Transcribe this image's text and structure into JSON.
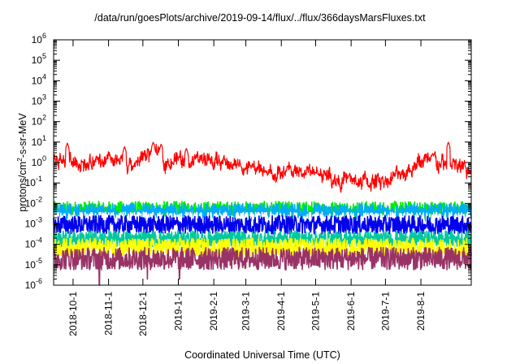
{
  "chart_data": {
    "type": "line",
    "title": "/data/run/goesPlots/archive/2019-09-14/flux/../flux/366daysMarsFluxes.txt",
    "xlabel": "Coordinated Universal Time (UTC)",
    "ylabel": {
      "main": "protons/cm",
      "sup": "2",
      "rest": "-s-sr-MeV"
    },
    "yscale": "log",
    "ylim_exp": [
      -6,
      6
    ],
    "ytick_base": "10",
    "ytick_exponents": [
      "-6",
      "-5",
      "-4",
      "-3",
      "-2",
      "-1",
      "0",
      "1",
      "2",
      "3",
      "4",
      "5",
      "6"
    ],
    "xlim": [
      "2018-09-14",
      "2019-09-14"
    ],
    "xticks": [
      {
        "date": "2018-10-01",
        "label": "2018-10-1"
      },
      {
        "date": "2018-11-01",
        "label": "2018-11-1"
      },
      {
        "date": "2018-12-01",
        "label": "2018-12-1"
      },
      {
        "date": "2019-01-01",
        "label": "2019-1-1"
      },
      {
        "date": "2019-02-01",
        "label": "2019-2-1"
      },
      {
        "date": "2019-03-01",
        "label": "2019-3-1"
      },
      {
        "date": "2019-04-01",
        "label": "2019-4-1"
      },
      {
        "date": "2019-05-01",
        "label": "2019-5-1"
      },
      {
        "date": "2019-06-01",
        "label": "2019-6-1"
      },
      {
        "date": "2019-07-01",
        "label": "2019-7-1"
      },
      {
        "date": "2019-08-01",
        "label": "2019-8-1"
      }
    ],
    "grid": false,
    "series": [
      {
        "color": "#00ee00",
        "base": 0.0045,
        "spread": 0.9
      },
      {
        "color": "#00aaff",
        "base": 0.0035,
        "spread": 0.9
      },
      {
        "color": "#ffffff",
        "base": 0.0015,
        "spread": 0.8
      },
      {
        "color": "#0000ee",
        "base": 0.0009,
        "spread": 0.9
      },
      {
        "color": "#00c8a0",
        "base": 0.00018,
        "spread": 0.8
      },
      {
        "color": "#ffff00",
        "base": 7e-05,
        "spread": 0.9
      },
      {
        "color": "#993366",
        "base": 2e-05,
        "spread": 1.1,
        "dips": [
          {
            "date": "2018-10-24",
            "value": 1e-06
          },
          {
            "date": "2018-12-05",
            "value": 2e-06
          },
          {
            "date": "2019-01-02",
            "value": 2e-06
          }
        ]
      },
      {
        "color": "#ff0000",
        "profile": [
          {
            "date": "2018-09-14",
            "value": 1.0
          },
          {
            "date": "2018-10-01",
            "value": 1.5
          },
          {
            "date": "2018-10-20",
            "value": 0.8
          },
          {
            "date": "2018-11-05",
            "value": 0.9
          },
          {
            "date": "2018-11-25",
            "value": 0.8
          },
          {
            "date": "2018-12-05",
            "value": 3.0
          },
          {
            "date": "2018-12-25",
            "value": 1.3
          },
          {
            "date": "2019-01-15",
            "value": 1.5
          },
          {
            "date": "2019-02-10",
            "value": 1.0
          },
          {
            "date": "2019-03-01",
            "value": 0.7
          },
          {
            "date": "2019-03-20",
            "value": 0.25
          },
          {
            "date": "2019-04-10",
            "value": 0.35
          },
          {
            "date": "2019-05-01",
            "value": 0.35
          },
          {
            "date": "2019-05-20",
            "value": 0.15
          },
          {
            "date": "2019-06-15",
            "value": 0.1
          },
          {
            "date": "2019-07-10",
            "value": 0.2
          },
          {
            "date": "2019-07-31",
            "value": 1.2
          },
          {
            "date": "2019-08-20",
            "value": 0.8
          },
          {
            "date": "2019-09-14",
            "value": 0.4
          }
        ],
        "spikes": [
          {
            "date": "2018-09-26",
            "value": 9.0
          },
          {
            "date": "2018-11-15",
            "value": 6.0
          },
          {
            "date": "2018-12-10",
            "value": 10.0
          },
          {
            "date": "2018-12-17",
            "value": 8.0
          },
          {
            "date": "2019-01-08",
            "value": 5.0
          },
          {
            "date": "2019-08-25",
            "value": 10.0
          }
        ]
      }
    ]
  }
}
